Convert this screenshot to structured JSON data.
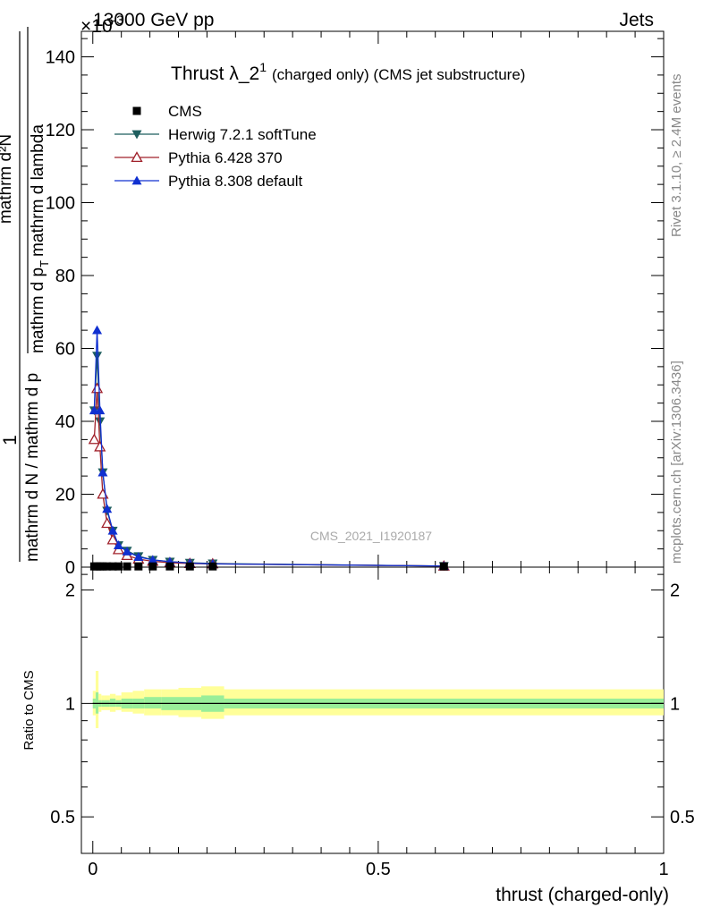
{
  "header": {
    "left": "13000 GeV pp",
    "right": "Jets",
    "exponent_prefix": "×10",
    "exponent": "-3"
  },
  "side": {
    "rivet": "Rivet 3.1.10, ≥ 2.4M events",
    "mcplots": "mcplots.cern.ch [arXiv:1306.3436]"
  },
  "watermark": "CMS_2021_I1920187",
  "chart_data": [
    {
      "type": "line",
      "title": "Thrust λ_2",
      "title_sup": "1",
      "title_suffix": "(charged only) (CMS jet substructure)",
      "ylabel_fraction_top": "1",
      "ylabel_fraction_bottom": "mathrm d N / mathrm d p",
      "ylabel_top": "mathrm d²N",
      "ylabel_bottom": "mathrm d p",
      "ylabel_bottom_suffix": "mathrm d lambda",
      "ylabel_sub": "T",
      "ylim": [
        0,
        147
      ],
      "yticks": [
        0,
        20,
        40,
        60,
        80,
        100,
        120,
        140
      ],
      "xlim": [
        -0.02,
        1.0
      ],
      "legend_position": "top-left",
      "x": [
        0.0025,
        0.0075,
        0.0125,
        0.0175,
        0.025,
        0.035,
        0.045,
        0.06,
        0.08,
        0.105,
        0.135,
        0.17,
        0.21,
        0.615
      ],
      "series": [
        {
          "name": "CMS",
          "color": "#000000",
          "marker": "square",
          "values": [
            0.2,
            0.2,
            0.2,
            0.2,
            0.2,
            0.2,
            0.2,
            0.2,
            0.2,
            0.2,
            0.2,
            0.2,
            0.2,
            0.2
          ]
        },
        {
          "name": "Herwig 7.2.1 softTune",
          "color": "#1e5e5e",
          "marker": "triangle-down",
          "values": [
            43,
            58,
            40,
            26,
            15.5,
            10,
            6,
            4.5,
            3,
            2,
            1.5,
            1.2,
            1.0,
            0.3
          ]
        },
        {
          "name": "Pythia 6.428 370",
          "color": "#a0202a",
          "marker": "triangle-up-open",
          "values": [
            35,
            49,
            33,
            20,
            12,
            7.5,
            4.8,
            3.2,
            2.2,
            1.6,
            1.2,
            1.0,
            0.9,
            0.3
          ]
        },
        {
          "name": "Pythia 8.308 default",
          "color": "#1030d0",
          "marker": "triangle-up",
          "values": [
            43,
            65,
            43,
            26,
            16,
            10,
            6,
            4.3,
            2.8,
            2.0,
            1.5,
            1.1,
            0.9,
            0.3
          ]
        }
      ]
    },
    {
      "type": "line",
      "ylabel": "Ratio to CMS",
      "xlabel": "thrust (charged-only)",
      "ylim": [
        0.4,
        2.3
      ],
      "ylog": true,
      "yticks": [
        0.5,
        1,
        2
      ],
      "xlim": [
        -0.02,
        1.0
      ],
      "xticks": [
        0,
        0.5,
        1
      ],
      "reference": 1,
      "bands": {
        "edges": [
          0,
          0.005,
          0.01,
          0.015,
          0.02,
          0.03,
          0.04,
          0.05,
          0.07,
          0.09,
          0.12,
          0.15,
          0.19,
          0.23,
          1.0
        ],
        "yellow": [
          [
            0.93,
            1.08
          ],
          [
            0.86,
            1.22
          ],
          [
            0.95,
            1.06
          ],
          [
            0.96,
            1.05
          ],
          [
            0.96,
            1.05
          ],
          [
            0.95,
            1.06
          ],
          [
            0.96,
            1.05
          ],
          [
            0.95,
            1.07
          ],
          [
            0.94,
            1.08
          ],
          [
            0.93,
            1.09
          ],
          [
            0.93,
            1.09
          ],
          [
            0.92,
            1.1
          ],
          [
            0.91,
            1.11
          ],
          [
            0.93,
            1.09
          ]
        ],
        "green": [
          [
            0.97,
            1.03
          ],
          [
            0.94,
            1.07
          ],
          [
            0.98,
            1.02
          ],
          [
            0.98,
            1.02
          ],
          [
            0.98,
            1.02
          ],
          [
            0.98,
            1.03
          ],
          [
            0.98,
            1.02
          ],
          [
            0.97,
            1.03
          ],
          [
            0.97,
            1.03
          ],
          [
            0.97,
            1.04
          ],
          [
            0.96,
            1.04
          ],
          [
            0.96,
            1.04
          ],
          [
            0.95,
            1.05
          ],
          [
            0.97,
            1.03
          ]
        ]
      }
    }
  ]
}
